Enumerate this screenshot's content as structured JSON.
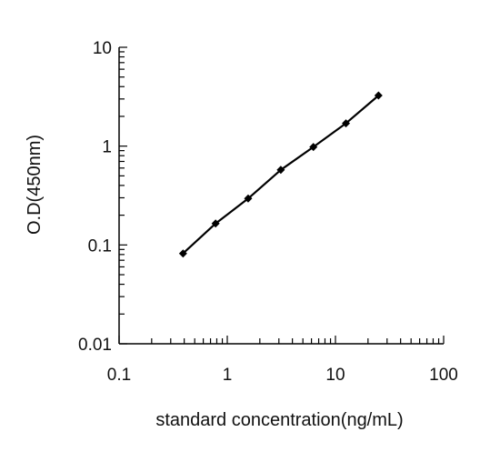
{
  "chart_data": {
    "type": "line",
    "title": "",
    "xlabel": "standard concentration(ng/mL)",
    "ylabel": "O.D(450nm)",
    "x_scale": "log",
    "y_scale": "log",
    "xlim": [
      0.1,
      100
    ],
    "ylim": [
      0.01,
      10
    ],
    "x_ticks": [
      "0.1",
      "1",
      "10",
      "100"
    ],
    "y_ticks": [
      "0.01",
      "0.1",
      "1",
      "10"
    ],
    "grid": false,
    "legend": "none",
    "series": [
      {
        "x": [
          0.39,
          0.78,
          1.56,
          3.125,
          6.25,
          12.5,
          25
        ],
        "y": [
          0.082,
          0.165,
          0.295,
          0.575,
          0.98,
          1.7,
          3.25
        ],
        "color": "#000000",
        "marker": "diamond"
      }
    ]
  }
}
